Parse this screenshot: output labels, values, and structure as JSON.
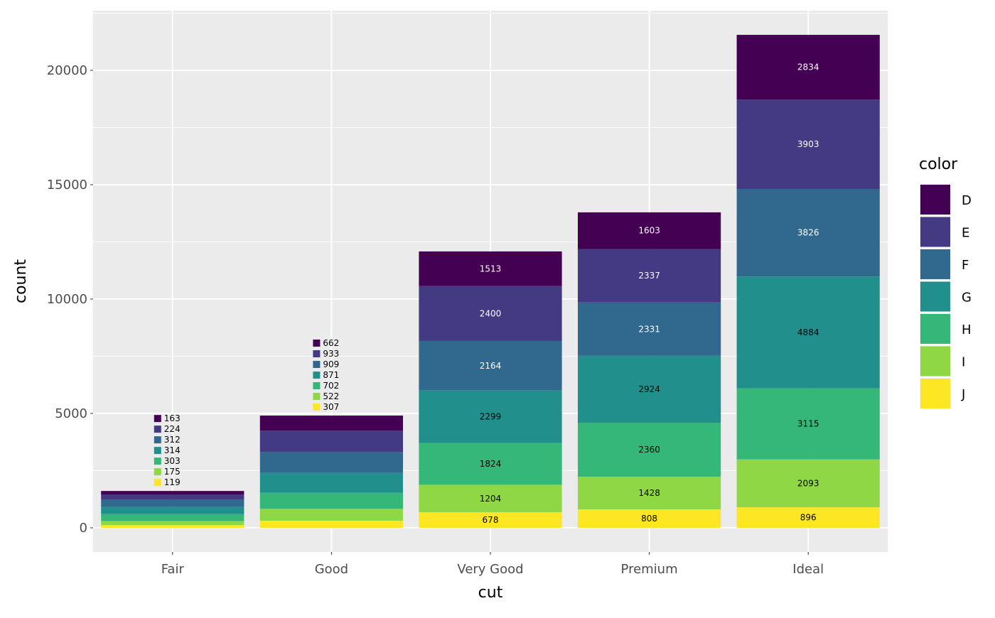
{
  "chart_data": {
    "type": "bar",
    "stacked": true,
    "title": "",
    "xlabel": "cut",
    "ylabel": "count",
    "categories": [
      "Fair",
      "Good",
      "Very Good",
      "Premium",
      "Ideal"
    ],
    "ylim": [
      -1056,
      22609
    ],
    "yticks": [
      0,
      5000,
      10000,
      15000,
      20000
    ],
    "ytick_labels": [
      "0",
      "5000",
      "10000",
      "15000",
      "20000"
    ],
    "grid": true,
    "legend": {
      "title": "color",
      "position": "right"
    },
    "series": [
      {
        "name": "D",
        "color": "#440154",
        "label_color": "#ffffff",
        "values": [
          163,
          662,
          1513,
          1603,
          2834
        ]
      },
      {
        "name": "E",
        "color": "#443A83",
        "label_color": "#ffffff",
        "values": [
          224,
          933,
          2400,
          2337,
          3903
        ]
      },
      {
        "name": "F",
        "color": "#31688E",
        "label_color": "#ffffff",
        "values": [
          312,
          909,
          2164,
          2331,
          3826
        ]
      },
      {
        "name": "G",
        "color": "#21908C",
        "label_color": "#000000",
        "values": [
          314,
          871,
          2299,
          2924,
          4884
        ]
      },
      {
        "name": "H",
        "color": "#35B779",
        "label_color": "#000000",
        "values": [
          303,
          702,
          1824,
          2360,
          3115
        ]
      },
      {
        "name": "I",
        "color": "#8FD744",
        "label_color": "#000000",
        "values": [
          175,
          522,
          1204,
          1428,
          2093
        ]
      },
      {
        "name": "J",
        "color": "#FDE725",
        "label_color": "#000000",
        "values": [
          119,
          307,
          678,
          808,
          896
        ]
      }
    ]
  }
}
